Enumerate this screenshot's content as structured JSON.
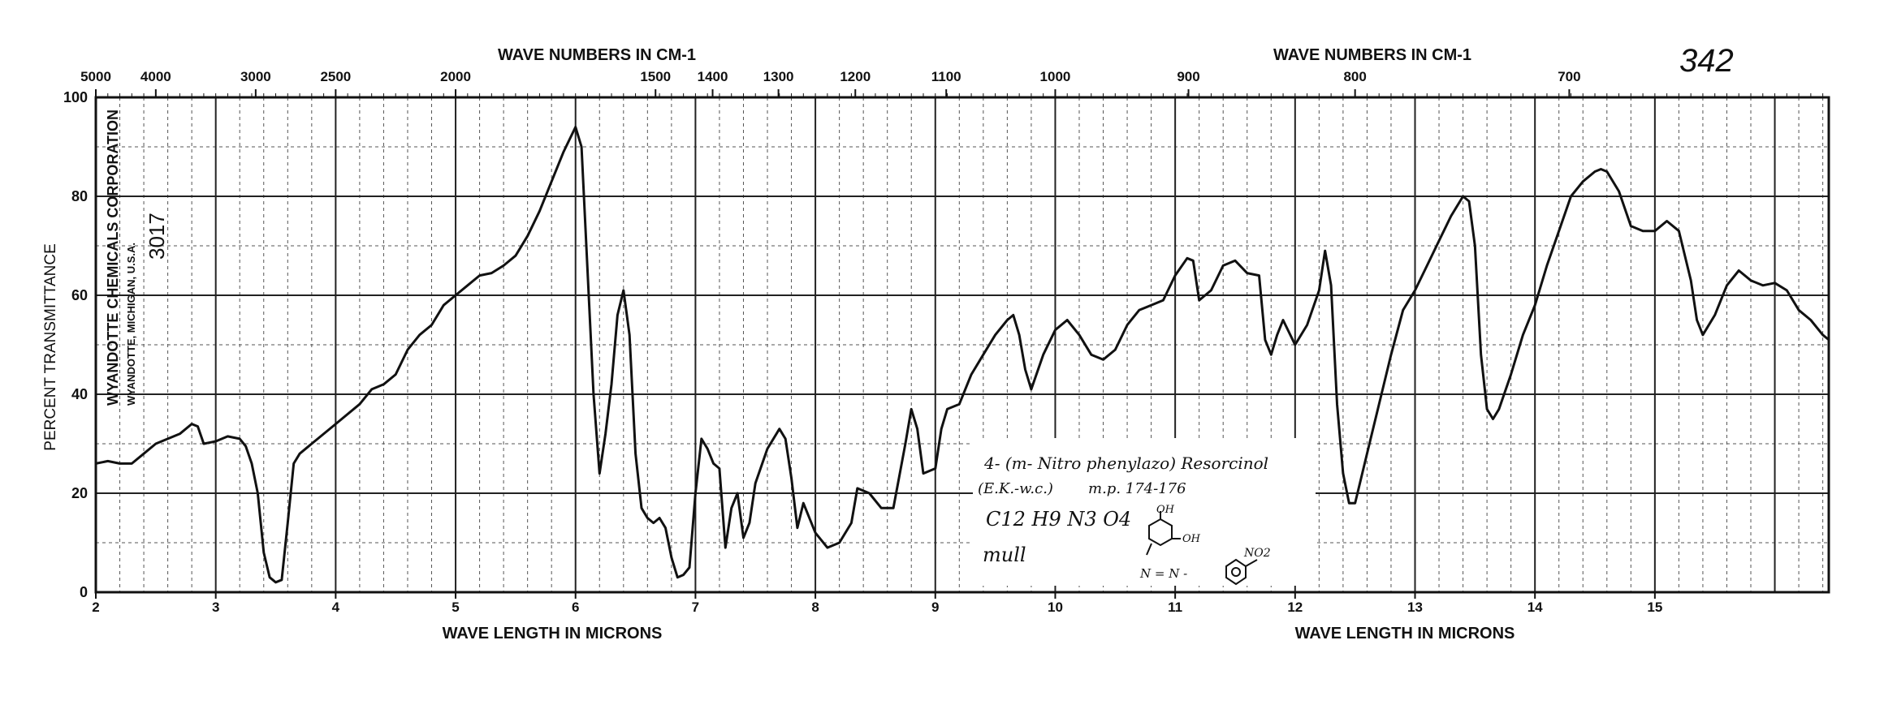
{
  "chart_data": {
    "type": "line",
    "title": "",
    "top_axis_label_left": "WAVE NUMBERS IN CM-1",
    "top_axis_label_right": "WAVE NUMBERS IN CM-1",
    "xlabel_left": "WAVE LENGTH IN MICRONS",
    "xlabel_right": "WAVE LENGTH IN MICRONS",
    "ylabel": "PERCENT TRANSMITTANCE",
    "xlim": [
      2,
      16
    ],
    "ylim": [
      0,
      100
    ],
    "grid": true,
    "x_ticks": [
      {
        "x": 2,
        "label": "2"
      },
      {
        "x": 3,
        "label": "3"
      },
      {
        "x": 4,
        "label": "4"
      },
      {
        "x": 5,
        "label": "5"
      },
      {
        "x": 6,
        "label": "6"
      },
      {
        "x": 7,
        "label": "7"
      },
      {
        "x": 8,
        "label": "8"
      },
      {
        "x": 9,
        "label": "9"
      },
      {
        "x": 10,
        "label": "10"
      },
      {
        "x": 11,
        "label": "11"
      },
      {
        "x": 12,
        "label": "12"
      },
      {
        "x": 13,
        "label": "13"
      },
      {
        "x": 14,
        "label": "14"
      },
      {
        "x": 15,
        "label": "15"
      }
    ],
    "y_ticks": [
      {
        "y": 0,
        "label": "0"
      },
      {
        "y": 20,
        "label": "20"
      },
      {
        "y": 40,
        "label": "40"
      },
      {
        "y": 60,
        "label": "60"
      },
      {
        "y": 80,
        "label": "80"
      },
      {
        "y": 100,
        "label": "100"
      }
    ],
    "wavenumber_ticks": [
      {
        "x": 2.0,
        "label": "5000"
      },
      {
        "x": 2.5,
        "label": "4000"
      },
      {
        "x": 3.333,
        "label": "3000"
      },
      {
        "x": 4.0,
        "label": "2500"
      },
      {
        "x": 5.0,
        "label": "2000"
      },
      {
        "x": 6.667,
        "label": "1500"
      },
      {
        "x": 7.143,
        "label": "1400"
      },
      {
        "x": 7.692,
        "label": "1300"
      },
      {
        "x": 8.333,
        "label": "1200"
      },
      {
        "x": 9.091,
        "label": "1100"
      },
      {
        "x": 10.0,
        "label": "1000"
      },
      {
        "x": 11.111,
        "label": "900"
      },
      {
        "x": 12.5,
        "label": "800"
      },
      {
        "x": 14.286,
        "label": "700"
      }
    ],
    "series": [
      {
        "color": "#111111",
        "points": [
          [
            2.0,
            26
          ],
          [
            2.1,
            26.5
          ],
          [
            2.2,
            26
          ],
          [
            2.3,
            26
          ],
          [
            2.4,
            28
          ],
          [
            2.5,
            30
          ],
          [
            2.6,
            31
          ],
          [
            2.7,
            32
          ],
          [
            2.8,
            34
          ],
          [
            2.85,
            33.5
          ],
          [
            2.9,
            30
          ],
          [
            3.0,
            30.5
          ],
          [
            3.1,
            31.5
          ],
          [
            3.2,
            31
          ],
          [
            3.25,
            29.5
          ],
          [
            3.3,
            26
          ],
          [
            3.35,
            20
          ],
          [
            3.4,
            8
          ],
          [
            3.45,
            3
          ],
          [
            3.5,
            2
          ],
          [
            3.55,
            2.5
          ],
          [
            3.6,
            14
          ],
          [
            3.65,
            26
          ],
          [
            3.7,
            28
          ],
          [
            3.8,
            30
          ],
          [
            4.0,
            34
          ],
          [
            4.2,
            38
          ],
          [
            4.3,
            41
          ],
          [
            4.4,
            42
          ],
          [
            4.5,
            44
          ],
          [
            4.6,
            49
          ],
          [
            4.7,
            52
          ],
          [
            4.8,
            54
          ],
          [
            4.9,
            58
          ],
          [
            5.0,
            60
          ],
          [
            5.1,
            62
          ],
          [
            5.2,
            64
          ],
          [
            5.3,
            64.5
          ],
          [
            5.4,
            66
          ],
          [
            5.5,
            68
          ],
          [
            5.6,
            72
          ],
          [
            5.7,
            77
          ],
          [
            5.8,
            83
          ],
          [
            5.9,
            89
          ],
          [
            6.0,
            94
          ],
          [
            6.05,
            90
          ],
          [
            6.1,
            65
          ],
          [
            6.15,
            40
          ],
          [
            6.2,
            24
          ],
          [
            6.25,
            32
          ],
          [
            6.3,
            42
          ],
          [
            6.35,
            56
          ],
          [
            6.4,
            61
          ],
          [
            6.45,
            52
          ],
          [
            6.5,
            28
          ],
          [
            6.55,
            17
          ],
          [
            6.6,
            15
          ],
          [
            6.65,
            14
          ],
          [
            6.7,
            15
          ],
          [
            6.75,
            13
          ],
          [
            6.8,
            7
          ],
          [
            6.85,
            3
          ],
          [
            6.9,
            3.5
          ],
          [
            6.95,
            5
          ],
          [
            7.0,
            20
          ],
          [
            7.05,
            31
          ],
          [
            7.1,
            29
          ],
          [
            7.15,
            26
          ],
          [
            7.2,
            25
          ],
          [
            7.25,
            9
          ],
          [
            7.3,
            17
          ],
          [
            7.35,
            20
          ],
          [
            7.4,
            11
          ],
          [
            7.45,
            14
          ],
          [
            7.5,
            22
          ],
          [
            7.6,
            29
          ],
          [
            7.7,
            33
          ],
          [
            7.75,
            31
          ],
          [
            7.8,
            23
          ],
          [
            7.85,
            13
          ],
          [
            7.9,
            18
          ],
          [
            7.95,
            15
          ],
          [
            8.0,
            12
          ],
          [
            8.1,
            9
          ],
          [
            8.2,
            10
          ],
          [
            8.3,
            14
          ],
          [
            8.35,
            21
          ],
          [
            8.45,
            20
          ],
          [
            8.55,
            17
          ],
          [
            8.65,
            17
          ],
          [
            8.75,
            30
          ],
          [
            8.8,
            37
          ],
          [
            8.85,
            33
          ],
          [
            8.9,
            24
          ],
          [
            9.0,
            25
          ],
          [
            9.05,
            33
          ],
          [
            9.1,
            37
          ],
          [
            9.2,
            38
          ],
          [
            9.3,
            44
          ],
          [
            9.4,
            48
          ],
          [
            9.5,
            52
          ],
          [
            9.6,
            55
          ],
          [
            9.65,
            56
          ],
          [
            9.7,
            52
          ],
          [
            9.75,
            45
          ],
          [
            9.8,
            41
          ],
          [
            9.9,
            48
          ],
          [
            10.0,
            53
          ],
          [
            10.1,
            55
          ],
          [
            10.2,
            52
          ],
          [
            10.3,
            48
          ],
          [
            10.4,
            47
          ],
          [
            10.5,
            49
          ],
          [
            10.6,
            54
          ],
          [
            10.7,
            57
          ],
          [
            10.8,
            58
          ],
          [
            10.9,
            59
          ],
          [
            11.0,
            64
          ],
          [
            11.1,
            67.5
          ],
          [
            11.15,
            67
          ],
          [
            11.2,
            59
          ],
          [
            11.3,
            61
          ],
          [
            11.4,
            66
          ],
          [
            11.5,
            67
          ],
          [
            11.6,
            64.5
          ],
          [
            11.7,
            64
          ],
          [
            11.75,
            51
          ],
          [
            11.8,
            48
          ],
          [
            11.85,
            52
          ],
          [
            11.9,
            55
          ],
          [
            12.0,
            50
          ],
          [
            12.1,
            54
          ],
          [
            12.2,
            61
          ],
          [
            12.25,
            69
          ],
          [
            12.3,
            62
          ],
          [
            12.35,
            38
          ],
          [
            12.4,
            24
          ],
          [
            12.45,
            18
          ],
          [
            12.5,
            18
          ],
          [
            12.6,
            28
          ],
          [
            12.7,
            38
          ],
          [
            12.8,
            48
          ],
          [
            12.9,
            57
          ],
          [
            13.0,
            61
          ],
          [
            13.1,
            66
          ],
          [
            13.2,
            71
          ],
          [
            13.3,
            76
          ],
          [
            13.4,
            80
          ],
          [
            13.45,
            79
          ],
          [
            13.5,
            70
          ],
          [
            13.55,
            48
          ],
          [
            13.6,
            37
          ],
          [
            13.65,
            35
          ],
          [
            13.7,
            37
          ],
          [
            13.8,
            44
          ],
          [
            13.9,
            52
          ],
          [
            14.0,
            58
          ],
          [
            14.1,
            66
          ],
          [
            14.2,
            73
          ],
          [
            14.3,
            80
          ],
          [
            14.4,
            83
          ],
          [
            14.5,
            85
          ],
          [
            14.55,
            85.5
          ],
          [
            14.6,
            85
          ],
          [
            14.7,
            81
          ],
          [
            14.8,
            74
          ],
          [
            14.9,
            73
          ],
          [
            15.0,
            73
          ],
          [
            15.1,
            75
          ],
          [
            15.2,
            73
          ],
          [
            15.3,
            63
          ],
          [
            15.35,
            55
          ],
          [
            15.4,
            52
          ],
          [
            15.5,
            56
          ],
          [
            15.6,
            62
          ],
          [
            15.7,
            65
          ],
          [
            15.8,
            63
          ],
          [
            15.9,
            62
          ],
          [
            16.0,
            62.5
          ],
          [
            16.1,
            61
          ],
          [
            16.2,
            57
          ],
          [
            16.3,
            55
          ],
          [
            16.4,
            52
          ],
          [
            16.45,
            51
          ]
        ]
      }
    ]
  },
  "sheet": {
    "page_number": "342",
    "stamp_company": "WYANDOTTE CHEMICALS CORPORATION",
    "stamp_location": "WYANDOTTE, MICHIGAN, U.S.A.",
    "stamp_number": "3017"
  },
  "sample_label": {
    "line1": "4- (m- Nitro phenylazo) Resorcinol",
    "line2_left": "(E.K.-w.c.)",
    "line2_right": "m.p. 174-176",
    "formula": "C12 H9 N3 O4",
    "medium": "mull"
  },
  "structure": {
    "oh_top": "OH",
    "oh_side": "OH",
    "no2": "NO2",
    "azo": "N = N -"
  }
}
